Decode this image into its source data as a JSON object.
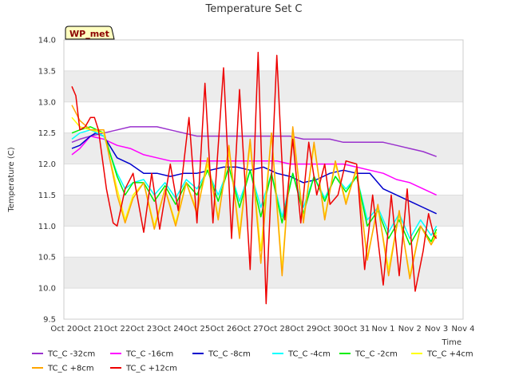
{
  "chart_data": {
    "type": "line",
    "title": "Temperature Set C",
    "xlabel": "Time",
    "ylabel": "Temperature (C)",
    "badge": "WP_met",
    "ylim": [
      9.5,
      14.0
    ],
    "xlim": [
      0,
      15
    ],
    "y_ticks": [
      9.5,
      10.0,
      10.5,
      11.0,
      11.5,
      12.0,
      12.5,
      13.0,
      13.5,
      14.0
    ],
    "y_tick_labels": [
      "9.5",
      "10.0",
      "10.5",
      "11.0",
      "11.5",
      "12.0",
      "12.5",
      "13.0",
      "13.5",
      "14.0"
    ],
    "x_ticks": [
      0,
      1,
      2,
      3,
      4,
      5,
      6,
      7,
      8,
      9,
      10,
      11,
      12,
      13,
      14,
      15
    ],
    "x_tick_labels": [
      "Oct 20",
      "Oct 21",
      "Oct 22",
      "Oct 23",
      "Oct 24",
      "Oct 25",
      "Oct 26",
      "Oct 27",
      "Oct 28",
      "Oct 29",
      "Oct 30",
      "Oct 31",
      "Nov 1",
      "Nov 2",
      "Nov 3",
      "Nov 4"
    ],
    "grid": true,
    "legend_position": "bottom",
    "series": [
      {
        "name": "TC_C -32cm",
        "color": "#9a32cd",
        "x": [
          0.3,
          0.6,
          1.0,
          1.5,
          2.0,
          2.5,
          3.0,
          3.5,
          4.0,
          4.5,
          5.0,
          5.5,
          6.0,
          6.5,
          7.0,
          7.5,
          8.0,
          8.5,
          9.0,
          9.5,
          10.0,
          10.5,
          11.0,
          11.5,
          12.0,
          12.5,
          13.0,
          13.5,
          14.0
        ],
        "y": [
          12.35,
          12.4,
          12.45,
          12.5,
          12.55,
          12.6,
          12.6,
          12.6,
          12.55,
          12.5,
          12.45,
          12.45,
          12.45,
          12.45,
          12.45,
          12.45,
          12.45,
          12.45,
          12.4,
          12.4,
          12.4,
          12.35,
          12.35,
          12.35,
          12.35,
          12.3,
          12.25,
          12.2,
          12.12
        ]
      },
      {
        "name": "TC_C -16cm",
        "color": "#ff00ff",
        "x": [
          0.3,
          0.6,
          1.0,
          1.5,
          2.0,
          2.5,
          3.0,
          3.5,
          4.0,
          4.5,
          5.0,
          5.5,
          6.0,
          6.5,
          7.0,
          7.5,
          8.0,
          8.5,
          9.0,
          9.5,
          10.0,
          10.5,
          11.0,
          11.5,
          12.0,
          12.5,
          13.0,
          13.5,
          14.0
        ],
        "y": [
          12.15,
          12.25,
          12.45,
          12.4,
          12.3,
          12.25,
          12.15,
          12.1,
          12.05,
          12.05,
          12.05,
          12.05,
          12.05,
          12.05,
          12.05,
          12.05,
          12.05,
          12.0,
          12.0,
          12.0,
          12.0,
          12.0,
          11.95,
          11.9,
          11.85,
          11.75,
          11.7,
          11.6,
          11.5
        ]
      },
      {
        "name": "TC_C -8cm",
        "color": "#0000cd",
        "x": [
          0.3,
          0.6,
          1.0,
          1.2,
          1.5,
          2.0,
          2.5,
          3.0,
          3.5,
          4.0,
          4.5,
          5.0,
          5.5,
          6.0,
          6.5,
          7.0,
          7.5,
          8.0,
          8.5,
          9.0,
          9.5,
          10.0,
          10.5,
          11.0,
          11.5,
          12.0,
          12.5,
          13.0,
          13.5,
          14.0
        ],
        "y": [
          12.25,
          12.3,
          12.45,
          12.5,
          12.45,
          12.1,
          12.0,
          11.85,
          11.85,
          11.8,
          11.85,
          11.85,
          11.9,
          11.95,
          11.95,
          11.9,
          11.95,
          11.85,
          11.8,
          11.7,
          11.75,
          11.85,
          11.9,
          11.85,
          11.85,
          11.6,
          11.5,
          11.4,
          11.3,
          11.2
        ]
      },
      {
        "name": "TC_C -4cm",
        "color": "#00ffff",
        "x": [
          0.3,
          0.6,
          1.0,
          1.5,
          2.0,
          2.3,
          2.6,
          3.0,
          3.4,
          3.8,
          4.2,
          4.6,
          5.0,
          5.4,
          5.8,
          6.2,
          6.6,
          7.0,
          7.4,
          7.8,
          8.2,
          8.6,
          9.0,
          9.4,
          9.8,
          10.2,
          10.6,
          11.0,
          11.4,
          11.8,
          12.2,
          12.6,
          13.0,
          13.4,
          13.8,
          14.0
        ],
        "y": [
          12.4,
          12.5,
          12.55,
          12.45,
          11.85,
          11.6,
          11.7,
          11.75,
          11.5,
          11.7,
          11.45,
          11.75,
          11.6,
          11.9,
          11.5,
          11.95,
          11.4,
          11.9,
          11.3,
          11.85,
          11.15,
          11.85,
          11.3,
          11.8,
          11.45,
          11.8,
          11.6,
          11.8,
          11.1,
          11.3,
          10.9,
          11.2,
          10.8,
          11.1,
          10.85,
          11.0
        ]
      },
      {
        "name": "TC_C -2cm",
        "color": "#00ee00",
        "x": [
          0.3,
          0.6,
          1.0,
          1.5,
          2.0,
          2.3,
          2.6,
          3.0,
          3.4,
          3.8,
          4.2,
          4.6,
          5.0,
          5.4,
          5.8,
          6.2,
          6.6,
          7.0,
          7.4,
          7.8,
          8.2,
          8.6,
          9.0,
          9.4,
          9.8,
          10.2,
          10.6,
          11.0,
          11.4,
          11.8,
          12.2,
          12.6,
          13.0,
          13.4,
          13.8,
          14.0
        ],
        "y": [
          12.5,
          12.55,
          12.6,
          12.5,
          11.8,
          11.5,
          11.7,
          11.7,
          11.4,
          11.65,
          11.35,
          11.7,
          11.5,
          11.9,
          11.4,
          11.95,
          11.3,
          11.9,
          11.15,
          11.85,
          11.05,
          11.85,
          11.2,
          11.8,
          11.4,
          11.8,
          11.55,
          11.8,
          11.0,
          11.25,
          10.8,
          11.1,
          10.7,
          11.0,
          10.75,
          10.95
        ]
      },
      {
        "name": "TC_C +4cm",
        "color": "#ffff00",
        "x": [
          0.3,
          0.6,
          1.0,
          1.5,
          2.0,
          2.3,
          2.6,
          3.0,
          3.4,
          3.8,
          4.2,
          4.6,
          5.0,
          5.4,
          5.8,
          6.2,
          6.6,
          7.0,
          7.4,
          7.8,
          8.2,
          8.6,
          9.0,
          9.4,
          9.8,
          10.2,
          10.6,
          11.0,
          11.4,
          11.8,
          12.2,
          12.6,
          13.0,
          13.4,
          13.8,
          14.0
        ],
        "y": [
          12.75,
          12.6,
          12.55,
          12.5,
          11.6,
          11.1,
          11.5,
          11.7,
          11.0,
          11.6,
          11.05,
          11.7,
          11.25,
          12.0,
          11.15,
          12.2,
          10.9,
          12.3,
          10.6,
          12.5,
          10.3,
          12.55,
          11.1,
          12.3,
          11.15,
          12.0,
          11.4,
          11.9,
          10.5,
          11.3,
          10.3,
          11.2,
          10.2,
          11.0,
          10.7,
          10.9
        ]
      },
      {
        "name": "TC_C +8cm",
        "color": "#ffa500",
        "x": [
          0.3,
          0.6,
          1.0,
          1.5,
          2.0,
          2.3,
          2.6,
          3.0,
          3.4,
          3.8,
          4.2,
          4.6,
          5.0,
          5.4,
          5.8,
          6.2,
          6.6,
          7.0,
          7.4,
          7.8,
          8.2,
          8.6,
          9.0,
          9.4,
          9.8,
          10.2,
          10.6,
          11.0,
          11.4,
          11.8,
          12.2,
          12.6,
          13.0,
          13.4,
          13.8,
          14.0
        ],
        "y": [
          12.95,
          12.7,
          12.55,
          12.55,
          11.5,
          11.05,
          11.45,
          11.7,
          10.95,
          11.6,
          11.0,
          11.7,
          11.2,
          12.1,
          11.1,
          12.3,
          10.8,
          12.4,
          10.4,
          12.5,
          10.2,
          12.6,
          11.05,
          12.35,
          11.1,
          12.05,
          11.35,
          11.95,
          10.45,
          11.35,
          10.2,
          11.25,
          10.15,
          11.0,
          10.7,
          10.85
        ]
      },
      {
        "name": "TC_C +12cm",
        "color": "#ee0000",
        "x": [
          0.3,
          0.45,
          0.6,
          0.8,
          1.0,
          1.15,
          1.3,
          1.6,
          1.85,
          2.0,
          2.3,
          2.6,
          3.0,
          3.3,
          3.6,
          4.0,
          4.3,
          4.7,
          5.0,
          5.3,
          5.6,
          6.0,
          6.3,
          6.6,
          7.0,
          7.3,
          7.6,
          8.0,
          8.3,
          8.6,
          8.9,
          9.2,
          9.5,
          9.8,
          10.0,
          10.3,
          10.6,
          11.0,
          11.3,
          11.6,
          12.0,
          12.3,
          12.6,
          12.9,
          13.2,
          13.5,
          13.7,
          13.9,
          14.0
        ],
        "y": [
          13.25,
          13.1,
          12.55,
          12.6,
          12.75,
          12.75,
          12.55,
          11.6,
          11.05,
          11.0,
          11.6,
          11.85,
          10.9,
          11.85,
          10.95,
          12.0,
          11.25,
          12.75,
          11.05,
          13.3,
          11.05,
          13.55,
          10.8,
          13.2,
          10.3,
          13.8,
          9.75,
          13.75,
          11.1,
          12.4,
          11.05,
          12.35,
          11.5,
          12.0,
          11.35,
          11.5,
          12.05,
          12.0,
          10.3,
          11.5,
          10.05,
          11.5,
          10.2,
          11.6,
          9.95,
          10.6,
          11.2,
          10.85,
          10.8
        ]
      }
    ]
  }
}
